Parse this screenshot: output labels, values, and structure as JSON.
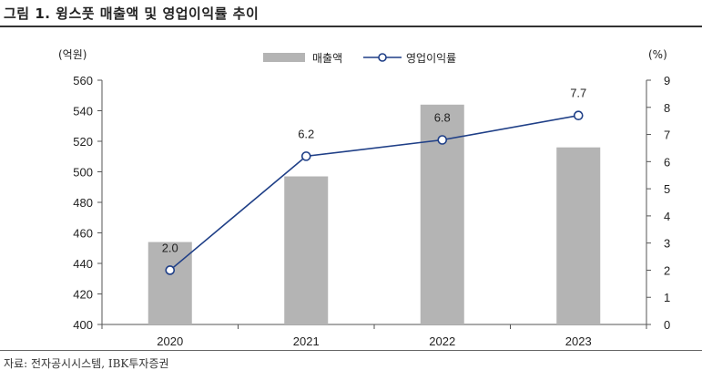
{
  "figure": {
    "title": "그림 1. 윙스풋 매출액 및 영업이익률 추이",
    "source": "자료: 전자공시시스템, IBK투자증권"
  },
  "chart_data": {
    "type": "bar+line",
    "categories": [
      "2020",
      "2021",
      "2022",
      "2023"
    ],
    "series": [
      {
        "name": "매출액",
        "type": "bar",
        "axis": "left",
        "color": "#b4b4b4",
        "values": [
          454,
          497,
          544,
          516
        ]
      },
      {
        "name": "영업이익률",
        "type": "line",
        "axis": "right",
        "color": "#1f3f87",
        "values": [
          2.0,
          6.2,
          6.8,
          7.7
        ],
        "data_labels": [
          "2.0",
          "6.2",
          "6.8",
          "7.7"
        ]
      }
    ],
    "y_left": {
      "unit": "(억원)",
      "ylim": [
        400,
        560
      ],
      "ticks": [
        400,
        420,
        440,
        460,
        480,
        500,
        520,
        540,
        560
      ]
    },
    "y_right": {
      "unit": "(%)",
      "ylim": [
        0,
        9
      ],
      "ticks": [
        0,
        1,
        2,
        3,
        4,
        5,
        6,
        7,
        8,
        9
      ]
    },
    "legend_position": "top-center",
    "grid": false
  }
}
